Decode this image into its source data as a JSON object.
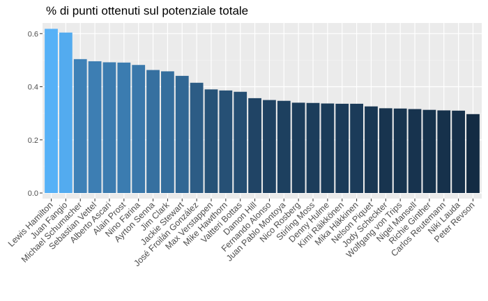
{
  "chart_data": {
    "type": "bar",
    "title": "% di punti ottenuti sul potenziale totale",
    "xlabel": "",
    "ylabel": "",
    "ylim": [
      0,
      0.64
    ],
    "yticks": [
      0.0,
      0.2,
      0.4,
      0.6
    ],
    "ytick_labels": [
      "0.0",
      "0.2",
      "0.4",
      "0.6"
    ],
    "grid": true,
    "legend": "none",
    "fill_gradient": [
      "#132B43",
      "#56B1F7"
    ],
    "panel_background": "#EBEBEB",
    "categories": [
      "Lewis Hamilton",
      "Juan Fangio",
      "Michael Schumacher",
      "Sebastian Vettel",
      "Alberto Ascari",
      "Alain Prost",
      "Nino Farina",
      "Ayrton Senna",
      "Jim Clark",
      "Jackie Stewart",
      "José Froilán González",
      "Max Verstappen",
      "Mike Hawthorn",
      "Valtteri Bottas",
      "Damon Hill",
      "Fernando Alonso",
      "Juan Pablo Montoya",
      "Nico Rosberg",
      "Stirling Moss",
      "Denny Hulme",
      "Kimi Räikkönen",
      "Mika Häkkinen",
      "Nelson Piquet",
      "Jody Scheckter",
      "Wolfgang von Trips",
      "Nigel Mansell",
      "Richie Ginther",
      "Carlos Reutemann",
      "Niki Lauda",
      "Peter Revson"
    ],
    "values": [
      0.618,
      0.604,
      0.504,
      0.496,
      0.492,
      0.491,
      0.482,
      0.463,
      0.458,
      0.441,
      0.415,
      0.39,
      0.386,
      0.381,
      0.357,
      0.35,
      0.347,
      0.34,
      0.339,
      0.337,
      0.336,
      0.336,
      0.326,
      0.319,
      0.318,
      0.316,
      0.313,
      0.311,
      0.31,
      0.297
    ]
  }
}
